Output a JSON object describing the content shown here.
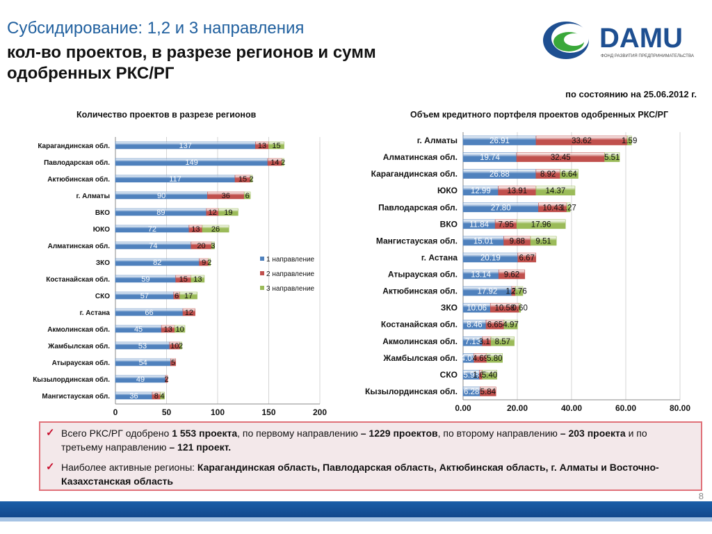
{
  "header": {
    "title_line1": "Субсидирование: 1,2 и 3 направления",
    "title_line2": "кол-во проектов, в разрезе регионов и сумм",
    "title_line3": "одобренных РКС/РГ",
    "logo_text": "DAMU",
    "logo_subtitle": "ФОНД РАЗВИТИЯ ПРЕДПРИНИМАТЕЛЬСТВА",
    "date_note": "по состоянию на 25.06.2012 г."
  },
  "colors": {
    "series1": "#4f81bd",
    "series2": "#c0504d",
    "series3": "#9bbb59",
    "title_blue": "#1f5f9e",
    "footer_blue": "#1a5fa8"
  },
  "chart_data": [
    {
      "type": "bar",
      "orientation": "horizontal",
      "stacked": true,
      "title": "Количество проектов в разрезе регионов",
      "categories": [
        "Карагандинская обл.",
        "Павлодарская обл.",
        "Актюбинская обл.",
        "г. Алматы",
        "ВКО",
        "ЮКО",
        "Алматинская обл.",
        "ЗКО",
        "Костанайская обл.",
        "СКО",
        "г. Астана",
        "Акмолинская обл.",
        "Жамбылская обл.",
        "Атырауская обл.",
        "Кызылординская обл.",
        "Мангистауская обл."
      ],
      "series": [
        {
          "name": "1 направление",
          "values": [
            137,
            149,
            117,
            90,
            89,
            72,
            74,
            82,
            59,
            57,
            66,
            45,
            53,
            54,
            49,
            36
          ]
        },
        {
          "name": "2 направление",
          "values": [
            13,
            14,
            15,
            36,
            12,
            13,
            20,
            9,
            15,
            6,
            12,
            13,
            10,
            5,
            2,
            8
          ]
        },
        {
          "name": "3 направление",
          "values": [
            15,
            2,
            2,
            6,
            19,
            26,
            3,
            2,
            13,
            17,
            null,
            10,
            2,
            null,
            null,
            4
          ]
        }
      ],
      "xlim": [
        0,
        200
      ],
      "xticks": [
        "0",
        "50",
        "100",
        "150",
        "200"
      ],
      "grid": true,
      "legend": "right"
    },
    {
      "type": "bar",
      "orientation": "horizontal",
      "stacked": true,
      "title": "Объем кредитного портфеля проектов одобренных РКС/РГ",
      "categories": [
        "г. Алматы",
        "Алматинская обл.",
        "Карагандинская обл.",
        "ЮКО",
        "Павлодарская обл.",
        "ВКО",
        "Мангистауская обл.",
        "г. Астана",
        "Атырауская обл.",
        "Актюбинская обл.",
        "ЗКО",
        "Костанайская обл.",
        "Акмолинская обл.",
        "Жамбылская обл.",
        "СКО",
        "Кызылординская обл."
      ],
      "series": [
        {
          "name": "1 направление",
          "values": [
            26.91,
            19.74,
            26.88,
            12.99,
            27.8,
            11.84,
            15.01,
            20.19,
            13.14,
            17.92,
            10.06,
            8.46,
            7.13,
            4.04,
            5.98,
            6.28
          ]
        },
        {
          "name": "2 направление",
          "values": [
            33.62,
            32.45,
            8.92,
            13.91,
            10.43,
            7.95,
            9.88,
            6.67,
            9.62,
            1.37,
            10.58,
            6.65,
            3.17,
            4.69,
            1.09,
            5.84
          ]
        },
        {
          "name": "3 направление",
          "values": [
            1.59,
            5.51,
            6.64,
            14.37,
            1.27,
            17.96,
            9.51,
            null,
            null,
            2.76,
            0.6,
            4.97,
            8.57,
            5.8,
            5.4,
            null
          ]
        }
      ],
      "data_labels": [
        [
          "26.91",
          "33.62",
          "1.59"
        ],
        [
          "19.74",
          "32.45",
          "5.51"
        ],
        [
          "26.88",
          "8.92",
          "6.64"
        ],
        [
          "12.99",
          "13.91",
          "14.37"
        ],
        [
          "27.80",
          "10.43",
          "1.27"
        ],
        [
          "11.84",
          "7.95",
          "17.96"
        ],
        [
          "15.01",
          "9.88",
          "9.51"
        ],
        [
          "20.19",
          "6.67",
          ""
        ],
        [
          "13.14",
          "9.62",
          ""
        ],
        [
          "17.92",
          "1.37",
          "2.76"
        ],
        [
          "10.06",
          "10.58",
          "0.60"
        ],
        [
          "8.46",
          "6.65",
          "4.97"
        ],
        [
          "7.13",
          "3.17",
          "8.57"
        ],
        [
          "4.04",
          "4.69",
          "5.80"
        ],
        [
          "5.98",
          "1.09",
          "5.40"
        ],
        [
          "6.28",
          "5.84",
          ""
        ]
      ],
      "xlim": [
        0,
        80
      ],
      "xticks": [
        "0.00",
        "20.00",
        "40.00",
        "60.00",
        "80.00"
      ],
      "grid": true
    }
  ],
  "summary": {
    "bullet1": {
      "t1": "Всего РКС/РГ одобрено ",
      "b1": "1 553 проекта",
      "t2": ", по первому направлению ",
      "b2": "– 1229 проектов",
      "t3": ", по второму направлению ",
      "b3": "– 203 проекта",
      "t4": " и по третьему направлению ",
      "b4": "– 121 проект."
    },
    "bullet2": {
      "t1": "Наиболее активные регионы: ",
      "b1": "Карагандинская область, Павлодарская область, Актюбинская область, г. Алматы и Восточно-Казахстанская область"
    }
  },
  "footer": {
    "page_number": "8"
  }
}
